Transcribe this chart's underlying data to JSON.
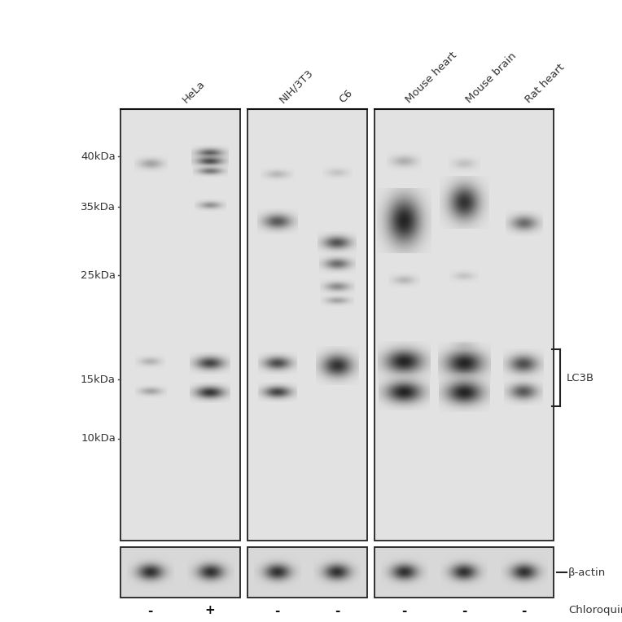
{
  "background_color": "#ffffff",
  "gel_bg": 0.88,
  "text_color": "#333333",
  "figure_size": [
    7.64,
    7.64
  ],
  "dpi": 100,
  "mw_labels": [
    "40kDa",
    "35kDa",
    "25kDa",
    "15kDa",
    "10kDa"
  ],
  "lane_labels_display": [
    "HeLa",
    "NIH/3T3",
    "C6",
    "Mouse heart",
    "Mouse brain",
    "Rat heart"
  ],
  "chloroquine_labels": [
    "-",
    "+",
    "-",
    "-",
    "-",
    "-",
    "-"
  ],
  "annotation_lc3b": "LC3B",
  "annotation_bactin": "β-actin",
  "annotation_chloroquine": "Chloroquine"
}
